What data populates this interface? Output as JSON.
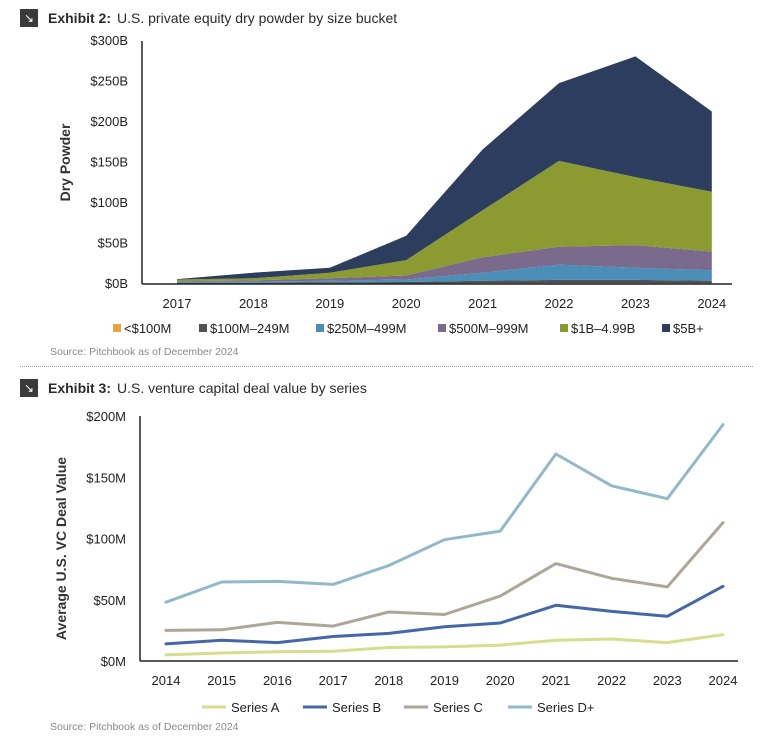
{
  "exhibit2": {
    "label": "Exhibit 2:",
    "title": "U.S. private equity dry powder by size bucket",
    "source": "Source: Pitchbook as of December 2024",
    "icon": "arrow-down-right-icon"
  },
  "exhibit3": {
    "label": "Exhibit 3:",
    "title": "U.S. venture capital deal value by series",
    "source": "Source: Pitchbook as of December 2024",
    "icon": "arrow-down-right-icon"
  },
  "chart_data": [
    {
      "type": "area",
      "stacked": true,
      "title": "U.S. private equity dry powder by size bucket",
      "xlabel": "",
      "ylabel": "Dry Powder",
      "ylim": [
        0,
        300
      ],
      "yticks": [
        0,
        50,
        100,
        150,
        200,
        250,
        300
      ],
      "ytick_labels": [
        "$0B",
        "$50B",
        "$100B",
        "$150B",
        "$200B",
        "$250B",
        "$300B"
      ],
      "x": [
        "2017",
        "2018",
        "2019",
        "2020",
        "2021",
        "2022",
        "2023",
        "2024"
      ],
      "grid": false,
      "legend": "bottom",
      "series": [
        {
          "name": "<$100M",
          "color": "#E8A33D",
          "values": [
            0.5,
            0.5,
            0.5,
            0.5,
            1,
            1,
            1,
            1
          ]
        },
        {
          "name": "$100M–249M",
          "color": "#4E5256",
          "values": [
            1,
            1,
            1.5,
            2,
            3,
            4,
            4,
            3
          ]
        },
        {
          "name": "$250M–499M",
          "color": "#4B8FB8",
          "values": [
            1,
            1.5,
            2,
            3,
            10,
            19,
            15,
            13
          ]
        },
        {
          "name": "$500M–999M",
          "color": "#7A6A8C",
          "values": [
            1,
            1.5,
            3,
            5,
            19,
            22,
            28,
            23
          ]
        },
        {
          "name": "$1B–4.99B",
          "color": "#8B9A31",
          "values": [
            2,
            2.5,
            7,
            19,
            58,
            106,
            84,
            74
          ]
        },
        {
          "name": "$5B+",
          "color": "#2C3D5E",
          "values": [
            0.5,
            7,
            6,
            30,
            75,
            96,
            149,
            99
          ]
        }
      ]
    },
    {
      "type": "line",
      "title": "U.S. venture capital deal value by series",
      "xlabel": "",
      "ylabel": "Average U.S. VC Deal Value",
      "ylim": [
        0,
        200
      ],
      "yticks": [
        0,
        50,
        100,
        150,
        200
      ],
      "ytick_labels": [
        "$0M",
        "$50M",
        "$100M",
        "$150M",
        "$200M"
      ],
      "x": [
        "2014",
        "2015",
        "2016",
        "2017",
        "2018",
        "2019",
        "2020",
        "2021",
        "2022",
        "2023",
        "2024"
      ],
      "grid": false,
      "legend": "bottom",
      "series": [
        {
          "name": "Series A",
          "color": "#D6DE8E",
          "values": [
            5,
            6.5,
            7.5,
            8,
            11,
            11.5,
            13,
            17,
            18,
            15,
            21.5
          ]
        },
        {
          "name": "Series B",
          "color": "#4567A8",
          "values": [
            14,
            17,
            15,
            20,
            22.5,
            28,
            31,
            45.5,
            40.5,
            36.5,
            61
          ]
        },
        {
          "name": "Series C",
          "color": "#ADA699",
          "values": [
            25,
            25.5,
            31.5,
            28.5,
            40,
            38,
            53,
            79.5,
            67.5,
            60.5,
            113
          ]
        },
        {
          "name": "Series D+",
          "color": "#92B9CA",
          "values": [
            48,
            64.5,
            65,
            62.5,
            78,
            99,
            106,
            169,
            143,
            132.5,
            193
          ]
        }
      ]
    }
  ]
}
